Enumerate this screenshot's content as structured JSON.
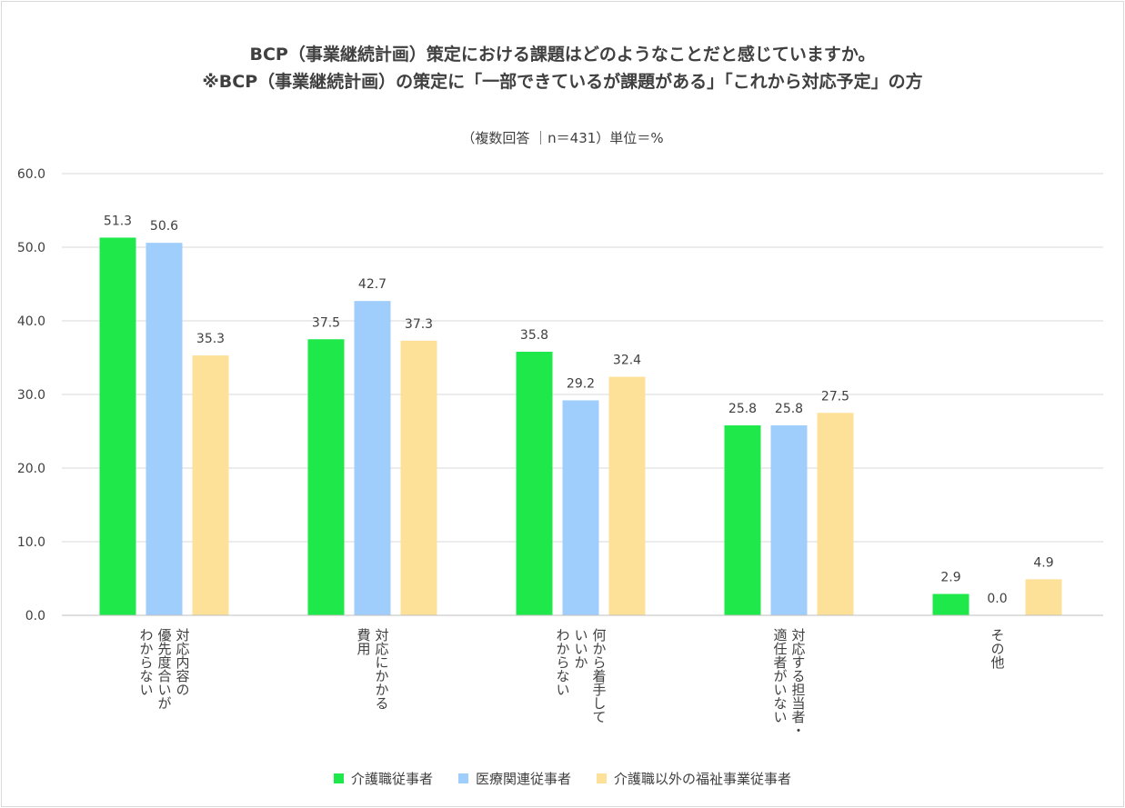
{
  "chart_data": {
    "type": "bar",
    "title_line1": "BCP（事業継続計画）策定における課題はどのようなことだと感じていますか。",
    "title_line2": "※BCP（事業継続計画）の策定に「一部できているが課題がある」「これから対応予定」の方",
    "subtitle": "（複数回答 ｜n＝431）単位＝%",
    "categories": [
      [
        "対応内容の",
        "優先度合いが",
        "わからない"
      ],
      [
        "対応にかかる",
        "費用"
      ],
      [
        "何から着手して",
        "いいか",
        "わからない"
      ],
      [
        "対応する担当者・",
        "適任者がいない"
      ],
      [
        "その他"
      ]
    ],
    "series": [
      {
        "name": "介護職従事者",
        "color": "#1ee84a",
        "values": [
          51.3,
          37.5,
          35.8,
          25.8,
          2.9
        ]
      },
      {
        "name": "医療関連従事者",
        "color": "#9fcdfc",
        "values": [
          50.6,
          42.7,
          29.2,
          25.8,
          0.0
        ]
      },
      {
        "name": "介護職以外の福祉事業従事者",
        "color": "#fde199",
        "values": [
          35.3,
          37.3,
          32.4,
          27.5,
          4.9
        ]
      }
    ],
    "yticks": [
      "60.0",
      "50.0",
      "40.0",
      "30.0",
      "20.0",
      "10.0",
      "0.0"
    ],
    "ylim": [
      0,
      60
    ],
    "grid": true,
    "legend_position": "bottom"
  }
}
